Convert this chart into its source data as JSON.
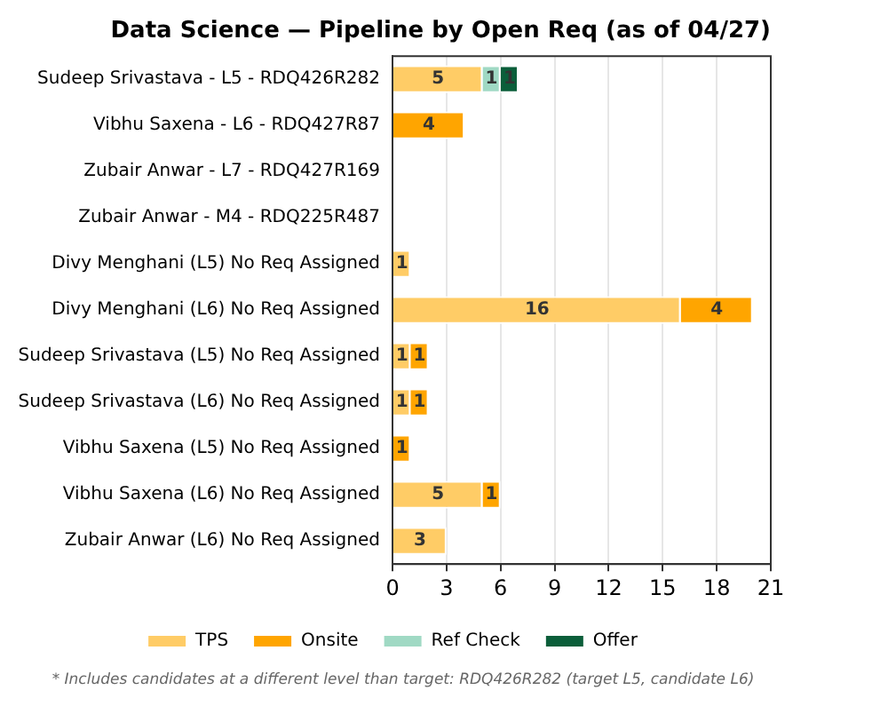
{
  "chart_data": {
    "type": "bar",
    "orientation": "horizontal",
    "stacked": true,
    "title": "Data Science — Pipeline by Open Req (as of 04/27)",
    "categories": [
      "Sudeep Srivastava - L5 - RDQ426R282",
      "Vibhu Saxena - L6 - RDQ427R87",
      "Zubair Anwar - L7 - RDQ427R169",
      "Zubair Anwar - M4 - RDQ225R487",
      "Divy Menghani (L5) No Req Assigned",
      "Divy Menghani (L6) No Req Assigned",
      "Sudeep Srivastava (L5) No Req Assigned",
      "Sudeep Srivastava (L6) No Req Assigned",
      "Vibhu Saxena (L5) No Req Assigned",
      "Vibhu Saxena (L6) No Req Assigned",
      "Zubair Anwar (L6) No Req Assigned"
    ],
    "series": [
      {
        "name": "TPS",
        "color": "#ffcc66",
        "values": [
          5,
          null,
          null,
          null,
          1,
          16,
          1,
          1,
          null,
          5,
          3
        ]
      },
      {
        "name": "Onsite",
        "color": "#ffa500",
        "values": [
          null,
          4,
          null,
          null,
          null,
          4,
          1,
          1,
          1,
          1,
          null
        ]
      },
      {
        "name": "Ref Check",
        "color": "#a0d9c4",
        "values": [
          1,
          null,
          null,
          null,
          null,
          null,
          null,
          null,
          null,
          null,
          null
        ]
      },
      {
        "name": "Offer",
        "color": "#0b5e3a",
        "values": [
          1,
          null,
          null,
          null,
          null,
          null,
          null,
          null,
          null,
          null,
          null
        ]
      }
    ],
    "xlim": [
      0,
      21
    ],
    "xticks": [
      0,
      3,
      6,
      9,
      12,
      15,
      18,
      21
    ],
    "grid": "x",
    "legend": "bottom",
    "data_labels": true,
    "annotations": [
      "* Includes candidates at a different level than target: RDQ426R282 (target L5, candidate L6)"
    ]
  }
}
